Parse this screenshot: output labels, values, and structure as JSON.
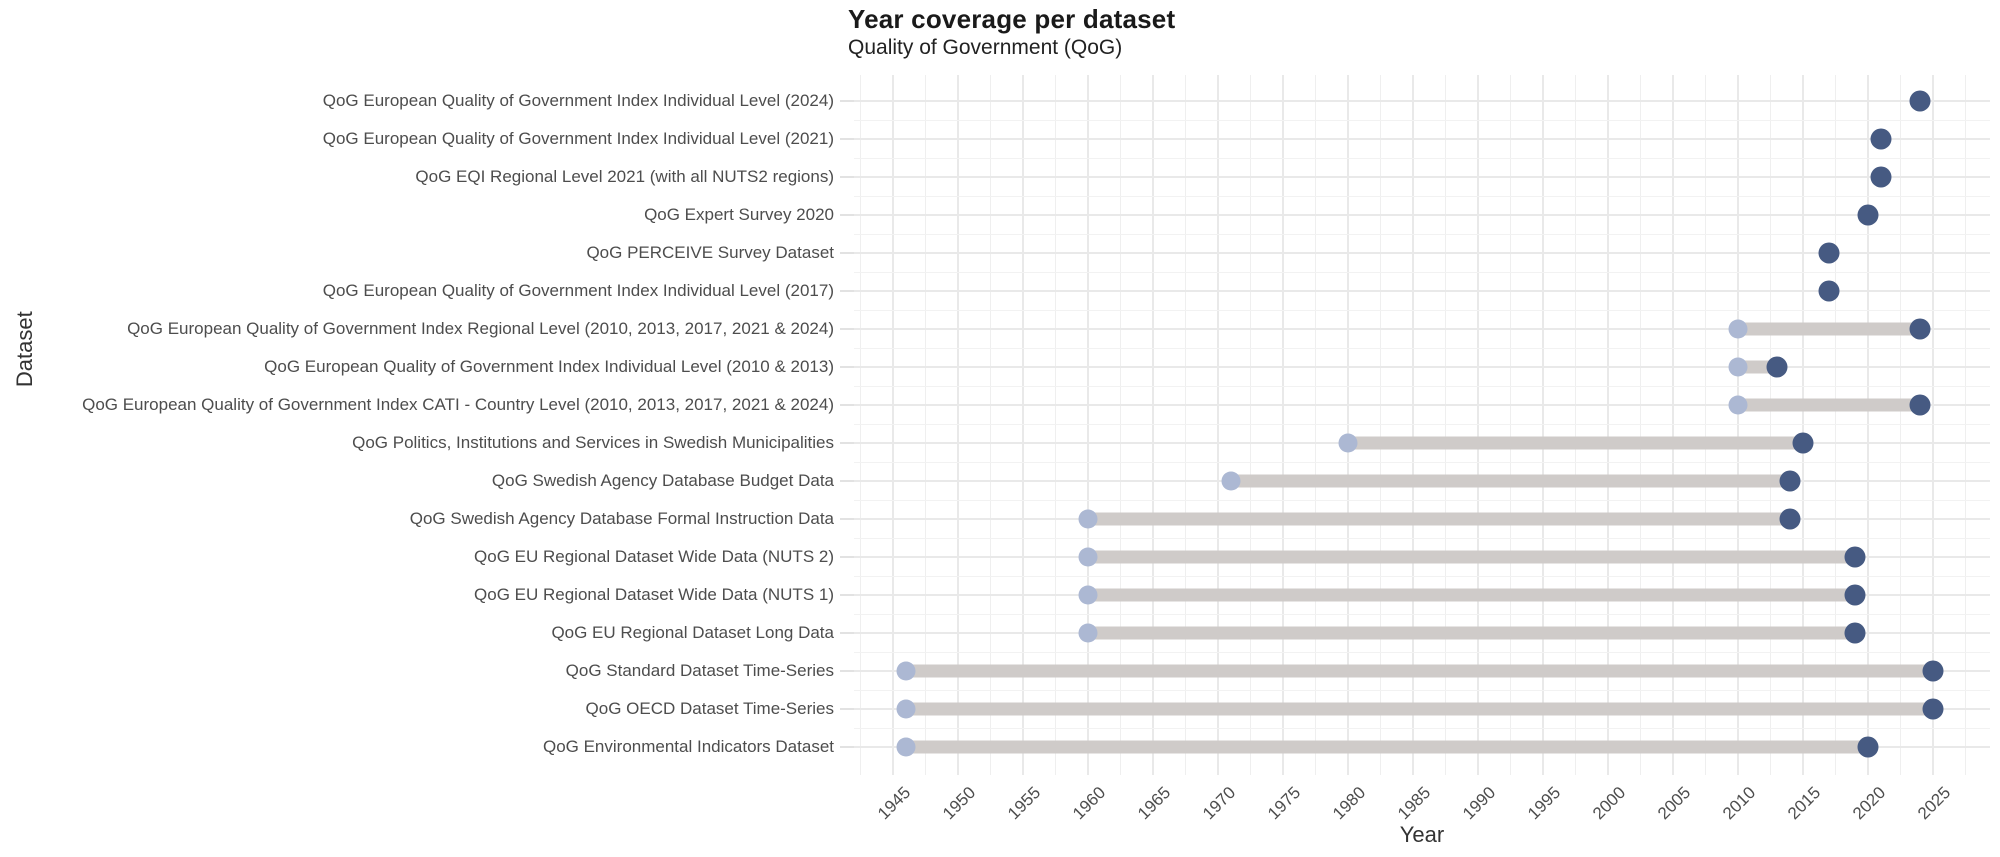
{
  "chart_data": {
    "type": "dumbbell",
    "title": "Year coverage per dataset",
    "subtitle": "Quality of Government (QoG)",
    "xlabel": "Year",
    "ylabel": "Dataset",
    "xlim": [
      1942.0,
      2029.4
    ],
    "x_ticks": [
      1945,
      1950,
      1955,
      1960,
      1965,
      1970,
      1975,
      1980,
      1985,
      1990,
      1995,
      2000,
      2005,
      2010,
      2015,
      2020,
      2025
    ],
    "grid": "on",
    "legend": "none",
    "series": [
      {
        "label": "QoG European Quality of Government Index Individual Level (2024)",
        "start": 2024,
        "end": 2024
      },
      {
        "label": "QoG European Quality of Government Index Individual Level (2021)",
        "start": 2021,
        "end": 2021
      },
      {
        "label": "QoG EQI Regional Level 2021 (with all NUTS2 regions)",
        "start": 2021,
        "end": 2021
      },
      {
        "label": "QoG Expert Survey 2020",
        "start": 2020,
        "end": 2020
      },
      {
        "label": "QoG PERCEIVE Survey Dataset",
        "start": 2017,
        "end": 2017
      },
      {
        "label": "QoG European Quality of Government Index Individual Level (2017)",
        "start": 2017,
        "end": 2017
      },
      {
        "label": "QoG European Quality of Government Index Regional Level (2010, 2013, 2017, 2021 & 2024)",
        "start": 2010,
        "end": 2024
      },
      {
        "label": "QoG European Quality of Government Index Individual Level (2010 & 2013)",
        "start": 2010,
        "end": 2013
      },
      {
        "label": "QoG European Quality of Government Index CATI - Country Level (2010, 2013, 2017, 2021 & 2024)",
        "start": 2010,
        "end": 2024
      },
      {
        "label": "QoG Politics, Institutions and Services in Swedish Municipalities",
        "start": 1980,
        "end": 2015
      },
      {
        "label": "QoG Swedish Agency Database Budget Data",
        "start": 1971,
        "end": 2014
      },
      {
        "label": "QoG Swedish Agency Database Formal Instruction Data",
        "start": 1960,
        "end": 2014
      },
      {
        "label": "QoG EU Regional Dataset Wide Data (NUTS 2)",
        "start": 1960,
        "end": 2019
      },
      {
        "label": "QoG EU Regional Dataset Wide Data (NUTS 1)",
        "start": 1960,
        "end": 2019
      },
      {
        "label": "QoG EU Regional Dataset Long Data",
        "start": 1960,
        "end": 2019
      },
      {
        "label": "QoG Standard Dataset Time-Series",
        "start": 1946,
        "end": 2025
      },
      {
        "label": "QoG OECD Dataset Time-Series",
        "start": 1946,
        "end": 2025
      },
      {
        "label": "QoG Environmental Indicators Dataset",
        "start": 1946,
        "end": 2020
      }
    ],
    "colors": {
      "start_dot": "#acb8d3",
      "end_dot": "#465a82",
      "range_bar": "#cfcbc9",
      "grid_major": "#e9e9e9",
      "grid_minor": "#efefef",
      "axis_text": "#4d4d4d",
      "title_text": "#1a1a1a"
    }
  }
}
